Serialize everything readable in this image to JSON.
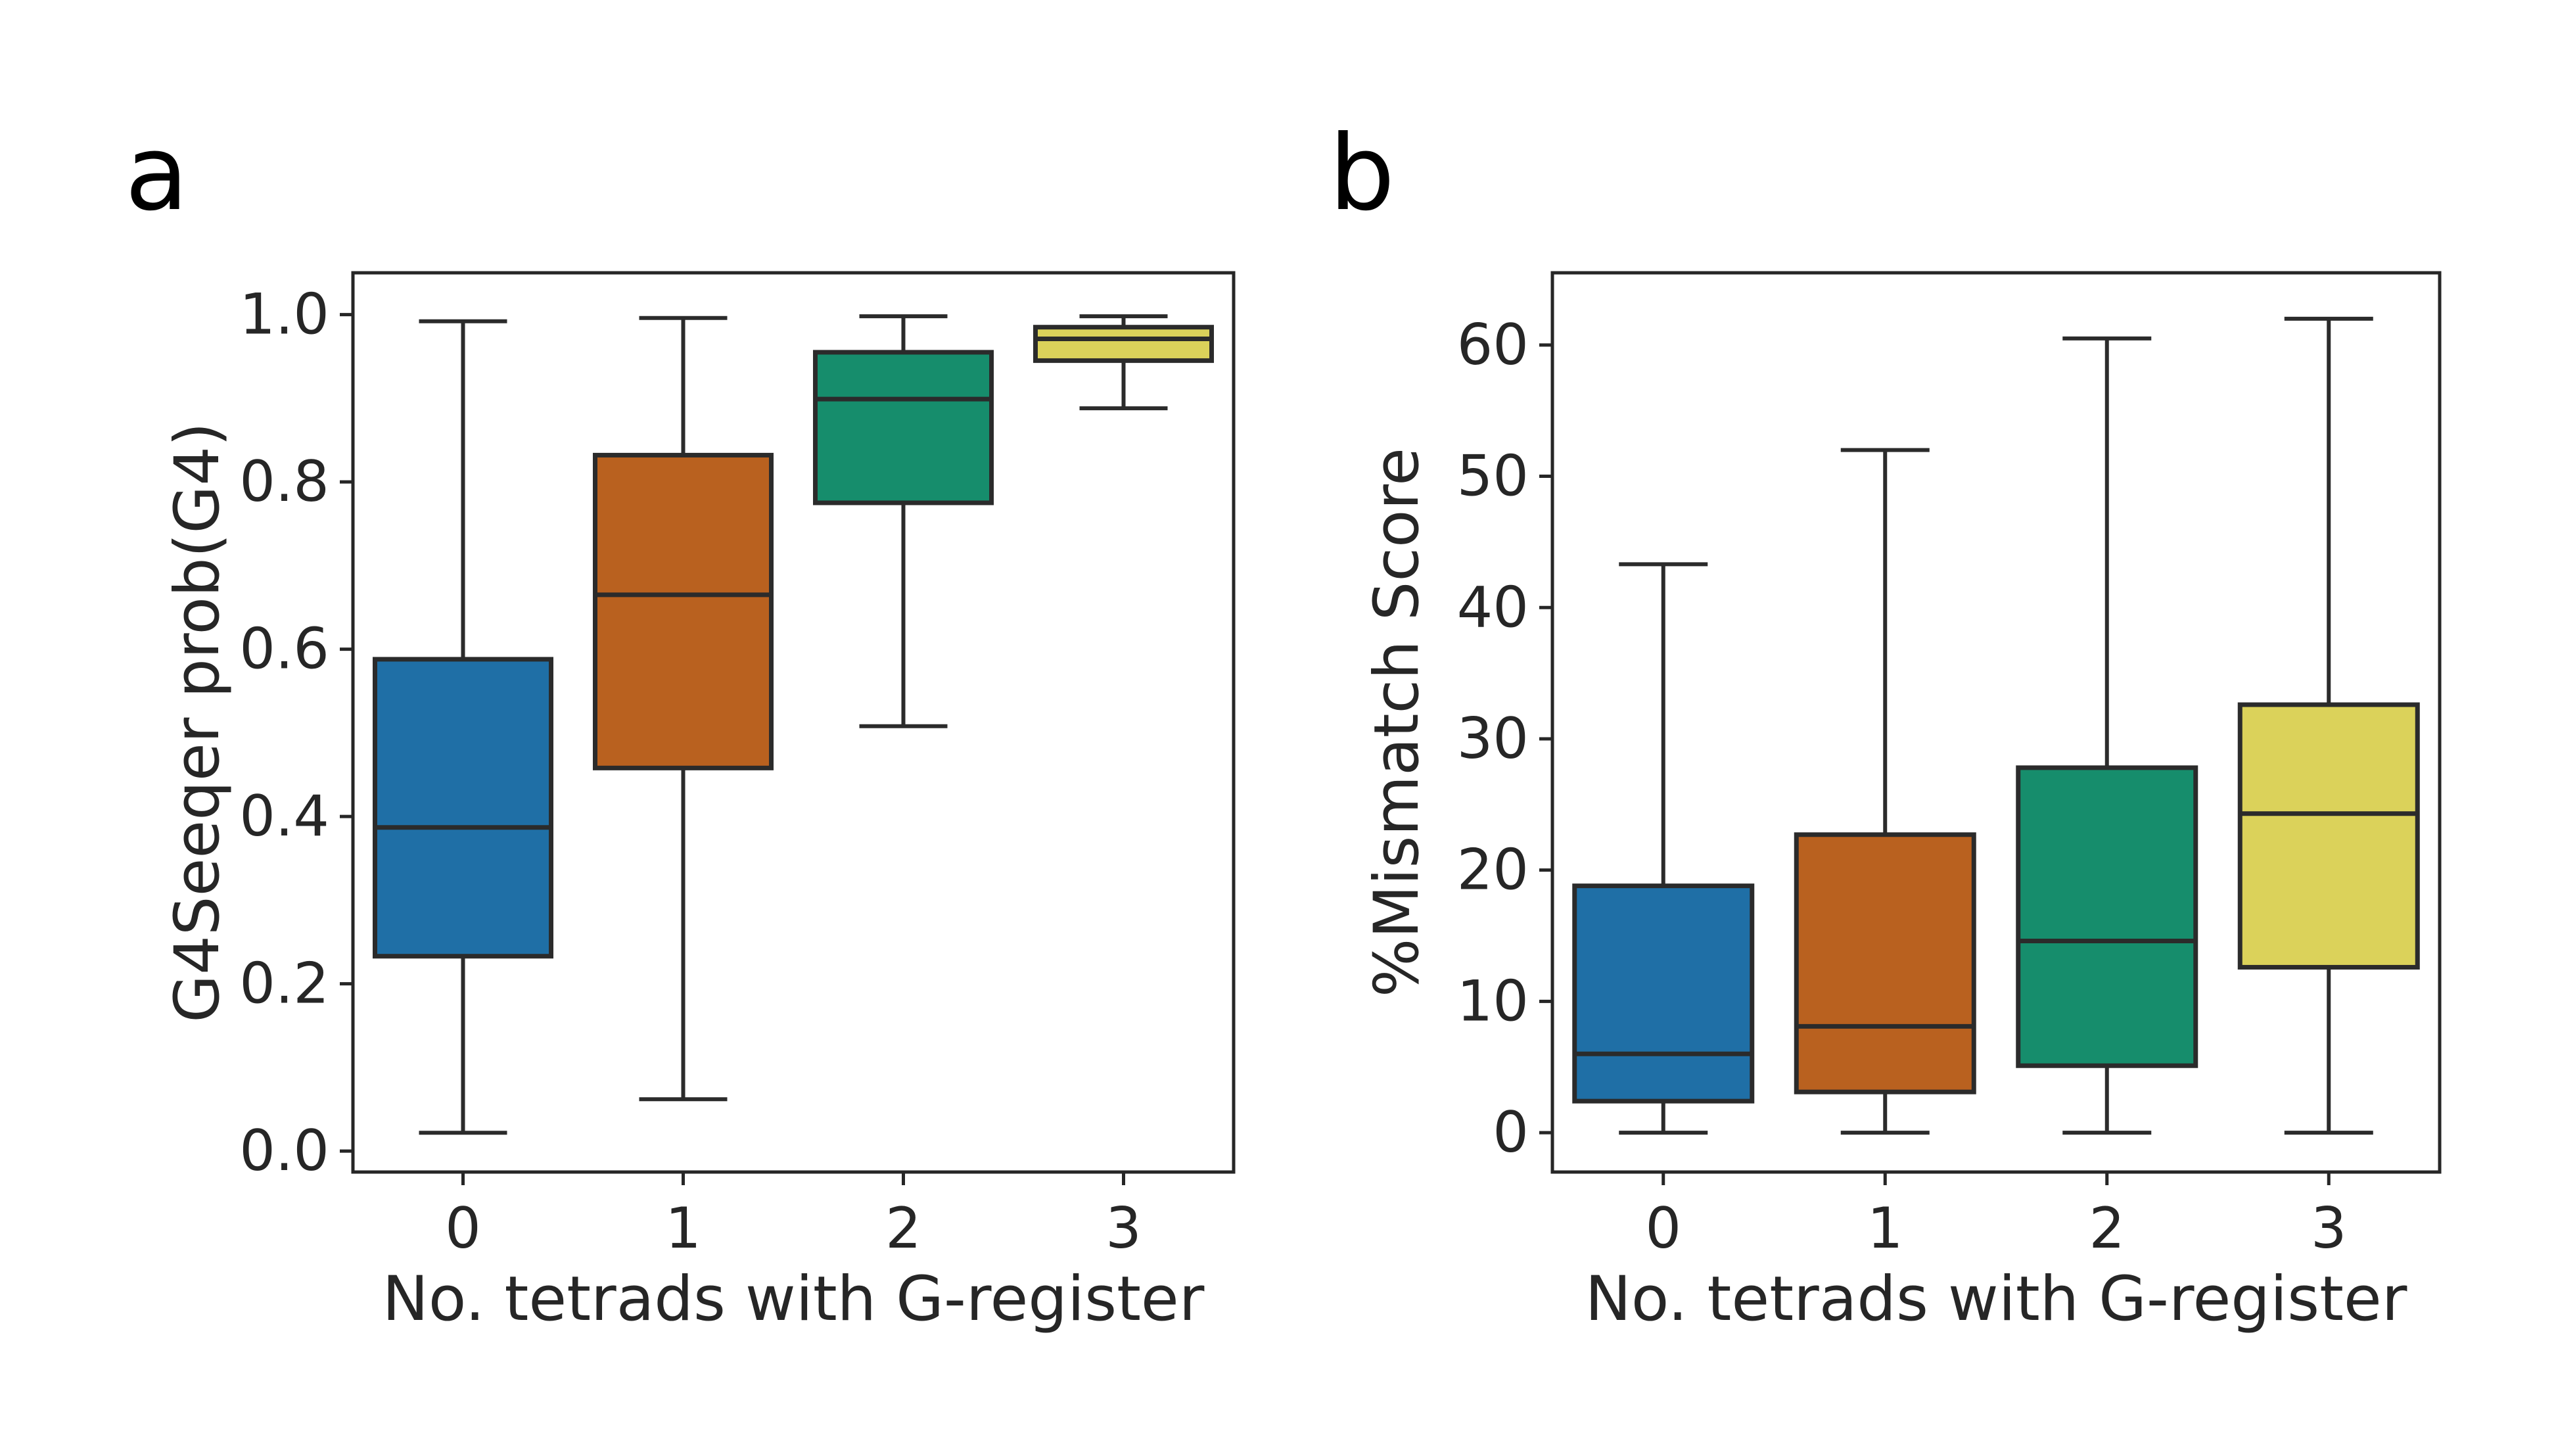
{
  "panels": [
    {
      "letter": "a",
      "chart_data": {
        "type": "box",
        "categories": [
          "0",
          "1",
          "2",
          "3"
        ],
        "xlabel": "No. tetrads with G-register",
        "ylabel": "G4Seeqer prob(G4)",
        "ylim": [
          -0.025,
          1.05
        ],
        "yticks": [
          0.0,
          0.2,
          0.4,
          0.6,
          0.8,
          1.0
        ],
        "ytick_labels": [
          "0.0",
          "0.2",
          "0.4",
          "0.6",
          "0.8",
          "1.0"
        ],
        "grid": false,
        "legend": "none",
        "boxes": [
          {
            "category": "0",
            "whisker_low": 0.022,
            "q1": 0.233,
            "median": 0.387,
            "q3": 0.588,
            "whisker_high": 0.992,
            "color": "#1f6fa6"
          },
          {
            "category": "1",
            "whisker_low": 0.062,
            "q1": 0.458,
            "median": 0.665,
            "q3": 0.832,
            "whisker_high": 0.996,
            "color": "#b9611f"
          },
          {
            "category": "2",
            "whisker_low": 0.508,
            "q1": 0.775,
            "median": 0.899,
            "q3": 0.955,
            "whisker_high": 0.998,
            "color": "#168d6c"
          },
          {
            "category": "3",
            "whisker_low": 0.888,
            "q1": 0.945,
            "median": 0.971,
            "q3": 0.985,
            "whisker_high": 0.998,
            "color": "#dbd25a"
          }
        ]
      }
    },
    {
      "letter": "b",
      "chart_data": {
        "type": "box",
        "categories": [
          "0",
          "1",
          "2",
          "3"
        ],
        "xlabel": "No. tetrads with G-register",
        "ylabel": "%Mismatch Score",
        "ylim": [
          -3,
          65.5
        ],
        "yticks": [
          0,
          10,
          20,
          30,
          40,
          50,
          60
        ],
        "ytick_labels": [
          "0",
          "10",
          "20",
          "30",
          "40",
          "50",
          "60"
        ],
        "grid": false,
        "legend": "none",
        "boxes": [
          {
            "category": "0",
            "whisker_low": 0.0,
            "q1": 2.4,
            "median": 6.0,
            "q3": 18.8,
            "whisker_high": 43.3,
            "color": "#1f6fa6"
          },
          {
            "category": "1",
            "whisker_low": 0.0,
            "q1": 3.1,
            "median": 8.1,
            "q3": 22.7,
            "whisker_high": 52.0,
            "color": "#b9611f"
          },
          {
            "category": "2",
            "whisker_low": 0.0,
            "q1": 5.1,
            "median": 14.6,
            "q3": 27.8,
            "whisker_high": 60.5,
            "color": "#168d6c"
          },
          {
            "category": "3",
            "whisker_low": 0.0,
            "q1": 12.6,
            "median": 24.3,
            "q3": 32.6,
            "whisker_high": 62.0,
            "color": "#dbd25a"
          }
        ]
      }
    }
  ],
  "style": {
    "edge_color": "#2b2b2b",
    "axis_color": "#262626"
  }
}
